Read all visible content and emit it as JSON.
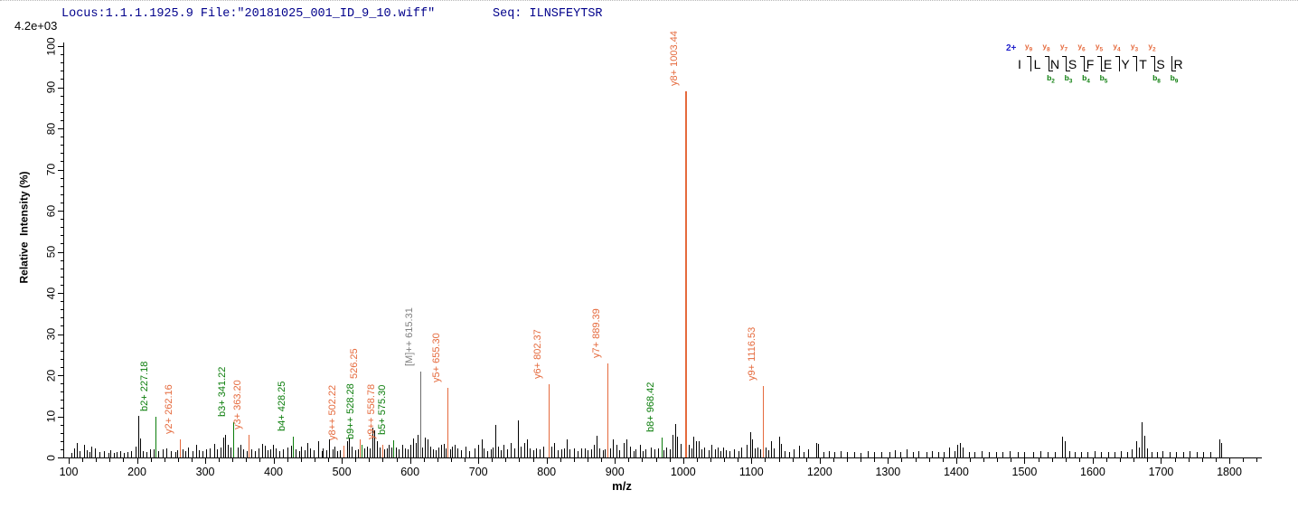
{
  "header": {
    "locus_file": "Locus:1.1.1.1925.9 File:\"20181025_001_ID_9_10.wiff\"",
    "seq": "Seq: ILNSFEYTSR"
  },
  "colors": {
    "y_ion": "#e56a3d",
    "b_ion": "#0b7d0b",
    "precursor_line": "#6e6e6e",
    "precursor_label": "#808080",
    "peak": "#000000",
    "header_text": "#00008b",
    "charge_text": "#2323cc",
    "axis": "#000000"
  },
  "peptide": {
    "charge": "2+",
    "residues": [
      "I",
      "L",
      "N",
      "S",
      "F",
      "E",
      "Y",
      "T",
      "S",
      "R"
    ],
    "fragments": [
      {
        "gap": 1,
        "y": "y9",
        "b": null
      },
      {
        "gap": 2,
        "y": "y8",
        "b": "b2"
      },
      {
        "gap": 3,
        "y": "y7",
        "b": "b3"
      },
      {
        "gap": 4,
        "y": "y6",
        "b": "b4"
      },
      {
        "gap": 5,
        "y": "y5",
        "b": "b5"
      },
      {
        "gap": 6,
        "y": "y4",
        "b": null
      },
      {
        "gap": 7,
        "y": "y3",
        "b": null
      },
      {
        "gap": 8,
        "y": "y2",
        "b": "b8"
      },
      {
        "gap": 9,
        "y": null,
        "b": "b9"
      }
    ]
  },
  "chart_data": {
    "type": "bar",
    "subtype": "MS/MS centroided mass spectrum",
    "title": "",
    "xlabel": "m/z",
    "ylabel": "Relative  Intensity (%)",
    "y_axis_max_counts_label": "4.2e+03",
    "xlim": [
      88,
      1845
    ],
    "ylim": [
      0,
      100
    ],
    "x_ticks": {
      "min": 100,
      "max": 1800,
      "major_step": 100,
      "minor_step": 20,
      "minor_max": 1840
    },
    "y_ticks": {
      "min": 0,
      "max": 100,
      "major_step": 10,
      "minor_step": 2
    },
    "grid": false,
    "annotated_peaks": [
      {
        "label": "b2+ 227.18",
        "mz": 227.18,
        "intensity_pct": 9.8,
        "series": "b"
      },
      {
        "label": "y2+ 262.16",
        "mz": 262.16,
        "intensity_pct": 4.5,
        "series": "y"
      },
      {
        "label": "b3+ 341.22",
        "mz": 341.22,
        "intensity_pct": 8.6,
        "series": "b"
      },
      {
        "label": "y3+ 363.20",
        "mz": 363.2,
        "intensity_pct": 5.6,
        "series": "y"
      },
      {
        "label": "b4+ 428.25",
        "mz": 428.25,
        "intensity_pct": 5.0,
        "series": "b"
      },
      {
        "label": "y8++ 502.22",
        "mz": 502.22,
        "intensity_pct": 2.9,
        "series": "y"
      },
      {
        "label": "526.25",
        "mz": 526.25,
        "intensity_pct": 4.4,
        "series": "y",
        "ldx": 6,
        "ldy": -61
      },
      {
        "label": "b9++ 528.28",
        "mz": 528.28,
        "intensity_pct": 3.0,
        "series": "b"
      },
      {
        "label": "y9++ 558.78",
        "mz": 558.78,
        "intensity_pct": 3.0,
        "series": "y"
      },
      {
        "label": "b5+ 575.30",
        "mz": 575.3,
        "intensity_pct": 4.2,
        "series": "b"
      },
      {
        "label": "[M]++ 615.31",
        "mz": 615.31,
        "intensity_pct": 20.8,
        "series": "M"
      },
      {
        "label": "y5+ 655.30",
        "mz": 655.3,
        "intensity_pct": 17.0,
        "series": "y"
      },
      {
        "label": "y6+ 802.37",
        "mz": 802.37,
        "intensity_pct": 17.8,
        "series": "y"
      },
      {
        "label": "y7+ 889.39",
        "mz": 889.39,
        "intensity_pct": 22.8,
        "series": "y"
      },
      {
        "label": "b8+ 968.42",
        "mz": 968.42,
        "intensity_pct": 4.8,
        "series": "b"
      },
      {
        "label": "y8+ 1003.44",
        "mz": 1003.44,
        "intensity_pct": 89.0,
        "series": "y",
        "lw": 2
      },
      {
        "label": "y9+ 1116.53",
        "mz": 1116.53,
        "intensity_pct": 17.3,
        "series": "y"
      }
    ],
    "noise_peaks": [
      [
        104,
        1.2
      ],
      [
        108,
        2.2
      ],
      [
        112,
        3.6
      ],
      [
        116,
        1.5
      ],
      [
        122,
        3.1
      ],
      [
        126,
        1.8
      ],
      [
        130,
        1.4
      ],
      [
        133,
        2.6
      ],
      [
        138,
        2.3
      ],
      [
        145,
        1.4
      ],
      [
        152,
        1.5
      ],
      [
        158,
        1.2
      ],
      [
        161,
        1.8
      ],
      [
        166,
        1.2
      ],
      [
        170,
        1.3
      ],
      [
        175,
        1.6
      ],
      [
        181,
        1.2
      ],
      [
        186,
        1.4
      ],
      [
        191,
        1.5
      ],
      [
        198,
        2.6
      ],
      [
        202,
        10.2
      ],
      [
        205,
        4.6
      ],
      [
        209,
        1.6
      ],
      [
        214,
        1.4
      ],
      [
        219,
        2.0
      ],
      [
        224,
        1.9
      ],
      [
        231,
        1.5
      ],
      [
        237,
        2.0
      ],
      [
        243,
        2.1
      ],
      [
        249,
        1.5
      ],
      [
        256,
        1.4
      ],
      [
        259,
        1.8
      ],
      [
        267,
        2.0
      ],
      [
        271,
        1.6
      ],
      [
        275,
        2.4
      ],
      [
        281,
        1.5
      ],
      [
        287,
        3.0
      ],
      [
        291,
        1.8
      ],
      [
        296,
        1.5
      ],
      [
        301,
        1.9
      ],
      [
        307,
        2.1
      ],
      [
        313,
        3.4
      ],
      [
        317,
        2.0
      ],
      [
        322,
        2.4
      ],
      [
        326,
        4.9
      ],
      [
        329,
        5.4
      ],
      [
        333,
        3.1
      ],
      [
        337,
        2.4
      ],
      [
        347,
        2.4
      ],
      [
        352,
        3.0
      ],
      [
        356,
        1.9
      ],
      [
        361,
        1.6
      ],
      [
        368,
        2.0
      ],
      [
        373,
        1.5
      ],
      [
        378,
        2.1
      ],
      [
        383,
        3.4
      ],
      [
        387,
        2.9
      ],
      [
        391,
        1.7
      ],
      [
        395,
        1.9
      ],
      [
        399,
        3.0
      ],
      [
        403,
        2.2
      ],
      [
        408,
        1.5
      ],
      [
        414,
        2.0
      ],
      [
        420,
        2.5
      ],
      [
        425,
        2.8
      ],
      [
        432,
        2.0
      ],
      [
        437,
        1.6
      ],
      [
        440,
        2.6
      ],
      [
        445,
        1.8
      ],
      [
        449,
        3.5
      ],
      [
        454,
        2.2
      ],
      [
        459,
        1.8
      ],
      [
        465,
        4.0
      ],
      [
        470,
        1.6
      ],
      [
        472,
        2.2
      ],
      [
        477,
        1.7
      ],
      [
        481,
        4.4
      ],
      [
        486,
        2.0
      ],
      [
        489,
        2.6
      ],
      [
        493,
        1.6
      ],
      [
        497,
        1.8
      ],
      [
        508,
        4.0
      ],
      [
        511,
        4.6
      ],
      [
        515,
        2.6
      ],
      [
        519,
        1.8
      ],
      [
        524,
        2.0
      ],
      [
        533,
        2.2
      ],
      [
        537,
        2.6
      ],
      [
        541,
        2.2
      ],
      [
        545,
        7.2
      ],
      [
        548,
        6.6
      ],
      [
        551,
        4.0
      ],
      [
        555,
        2.4
      ],
      [
        562,
        2.0
      ],
      [
        566,
        2.2
      ],
      [
        569,
        3.0
      ],
      [
        572,
        2.4
      ],
      [
        579,
        2.5
      ],
      [
        583,
        2.0
      ],
      [
        588,
        3.0
      ],
      [
        592,
        2.2
      ],
      [
        597,
        2.0
      ],
      [
        601,
        3.1
      ],
      [
        605,
        4.6
      ],
      [
        608,
        3.6
      ],
      [
        611,
        5.4
      ],
      [
        618,
        2.4
      ],
      [
        621,
        4.9
      ],
      [
        625,
        4.4
      ],
      [
        629,
        2.6
      ],
      [
        633,
        2.0
      ],
      [
        637,
        1.8
      ],
      [
        641,
        2.4
      ],
      [
        645,
        3.0
      ],
      [
        649,
        3.4
      ],
      [
        652,
        2.2
      ],
      [
        659,
        2.0
      ],
      [
        661,
        2.6
      ],
      [
        665,
        3.0
      ],
      [
        669,
        2.2
      ],
      [
        675,
        1.8
      ],
      [
        681,
        2.6
      ],
      [
        687,
        1.6
      ],
      [
        694,
        2.2
      ],
      [
        700,
        3.0
      ],
      [
        705,
        4.4
      ],
      [
        708,
        2.2
      ],
      [
        713,
        1.6
      ],
      [
        718,
        2.0
      ],
      [
        721,
        2.4
      ],
      [
        725,
        8.0
      ],
      [
        729,
        2.6
      ],
      [
        733,
        1.8
      ],
      [
        737,
        3.0
      ],
      [
        742,
        2.0
      ],
      [
        748,
        3.5
      ],
      [
        753,
        2.2
      ],
      [
        758,
        9.0
      ],
      [
        762,
        2.6
      ],
      [
        767,
        3.5
      ],
      [
        771,
        4.4
      ],
      [
        775,
        2.2
      ],
      [
        780,
        1.8
      ],
      [
        785,
        2.2
      ],
      [
        790,
        2.0
      ],
      [
        795,
        2.6
      ],
      [
        807,
        2.6
      ],
      [
        811,
        3.5
      ],
      [
        816,
        1.8
      ],
      [
        821,
        2.0
      ],
      [
        825,
        2.2
      ],
      [
        829,
        4.4
      ],
      [
        834,
        2.0
      ],
      [
        840,
        2.2
      ],
      [
        845,
        1.6
      ],
      [
        850,
        2.2
      ],
      [
        856,
        2.2
      ],
      [
        860,
        1.8
      ],
      [
        865,
        2.0
      ],
      [
        869,
        3.0
      ],
      [
        873,
        5.3
      ],
      [
        877,
        2.2
      ],
      [
        882,
        1.8
      ],
      [
        885,
        2.0
      ],
      [
        893,
        2.2
      ],
      [
        897,
        4.4
      ],
      [
        902,
        3.0
      ],
      [
        906,
        1.8
      ],
      [
        913,
        3.5
      ],
      [
        917,
        4.4
      ],
      [
        922,
        2.6
      ],
      [
        927,
        1.6
      ],
      [
        930,
        2.0
      ],
      [
        937,
        3.0
      ],
      [
        941,
        1.6
      ],
      [
        945,
        2.0
      ],
      [
        952,
        2.5
      ],
      [
        958,
        2.0
      ],
      [
        963,
        2.2
      ],
      [
        971,
        1.8
      ],
      [
        975,
        2.5
      ],
      [
        980,
        2.0
      ],
      [
        984,
        5.5
      ],
      [
        988,
        8.1
      ],
      [
        991,
        5.0
      ],
      [
        996,
        3.4
      ],
      [
        1008,
        3.0
      ],
      [
        1012,
        2.2
      ],
      [
        1015,
        5.0
      ],
      [
        1019,
        4.0
      ],
      [
        1023,
        4.0
      ],
      [
        1027,
        2.0
      ],
      [
        1031,
        2.5
      ],
      [
        1037,
        1.8
      ],
      [
        1041,
        3.0
      ],
      [
        1046,
        2.0
      ],
      [
        1050,
        2.5
      ],
      [
        1055,
        1.6
      ],
      [
        1058,
        2.5
      ],
      [
        1063,
        1.8
      ],
      [
        1068,
        1.5
      ],
      [
        1075,
        2.0
      ],
      [
        1081,
        1.6
      ],
      [
        1085,
        2.4
      ],
      [
        1093,
        3.0
      ],
      [
        1098,
        6.1
      ],
      [
        1101,
        4.4
      ],
      [
        1105,
        2.2
      ],
      [
        1109,
        2.5
      ],
      [
        1113,
        2.0
      ],
      [
        1121,
        2.4
      ],
      [
        1125,
        1.8
      ],
      [
        1129,
        4.0
      ],
      [
        1133,
        2.2
      ],
      [
        1140,
        5.0
      ],
      [
        1143,
        3.4
      ],
      [
        1148,
        1.6
      ],
      [
        1155,
        1.4
      ],
      [
        1162,
        2.0
      ],
      [
        1170,
        2.8
      ],
      [
        1176,
        1.4
      ],
      [
        1183,
        2.0
      ],
      [
        1195,
        3.5
      ],
      [
        1198,
        3.4
      ],
      [
        1205,
        1.4
      ],
      [
        1213,
        1.5
      ],
      [
        1222,
        1.3
      ],
      [
        1231,
        1.5
      ],
      [
        1240,
        1.3
      ],
      [
        1251,
        1.4
      ],
      [
        1260,
        1.2
      ],
      [
        1270,
        1.5
      ],
      [
        1280,
        1.3
      ],
      [
        1290,
        1.4
      ],
      [
        1302,
        1.3
      ],
      [
        1310,
        1.7
      ],
      [
        1318,
        1.4
      ],
      [
        1327,
        2.0
      ],
      [
        1336,
        1.3
      ],
      [
        1345,
        1.5
      ],
      [
        1356,
        1.3
      ],
      [
        1365,
        1.5
      ],
      [
        1374,
        1.3
      ],
      [
        1382,
        1.4
      ],
      [
        1389,
        2.4
      ],
      [
        1398,
        1.6
      ],
      [
        1402,
        3.0
      ],
      [
        1405,
        3.5
      ],
      [
        1409,
        2.5
      ],
      [
        1418,
        1.4
      ],
      [
        1427,
        1.3
      ],
      [
        1437,
        1.5
      ],
      [
        1448,
        1.3
      ],
      [
        1458,
        1.4
      ],
      [
        1468,
        1.3
      ],
      [
        1478,
        1.5
      ],
      [
        1490,
        1.3
      ],
      [
        1500,
        1.4
      ],
      [
        1512,
        1.3
      ],
      [
        1523,
        1.5
      ],
      [
        1534,
        1.3
      ],
      [
        1545,
        1.4
      ],
      [
        1555,
        5.1
      ],
      [
        1559,
        4.0
      ],
      [
        1566,
        1.5
      ],
      [
        1574,
        1.3
      ],
      [
        1583,
        1.4
      ],
      [
        1592,
        1.3
      ],
      [
        1602,
        1.5
      ],
      [
        1612,
        1.3
      ],
      [
        1622,
        1.4
      ],
      [
        1632,
        1.3
      ],
      [
        1641,
        1.5
      ],
      [
        1650,
        1.4
      ],
      [
        1657,
        2.0
      ],
      [
        1663,
        4.0
      ],
      [
        1668,
        2.4
      ],
      [
        1672,
        8.6
      ],
      [
        1675,
        5.3
      ],
      [
        1679,
        2.2
      ],
      [
        1686,
        1.4
      ],
      [
        1694,
        1.3
      ],
      [
        1702,
        1.5
      ],
      [
        1712,
        1.3
      ],
      [
        1722,
        1.4
      ],
      [
        1732,
        1.3
      ],
      [
        1742,
        1.5
      ],
      [
        1752,
        1.3
      ],
      [
        1762,
        1.4
      ],
      [
        1772,
        1.3
      ],
      [
        1786,
        4.3
      ],
      [
        1788,
        3.5
      ]
    ]
  }
}
